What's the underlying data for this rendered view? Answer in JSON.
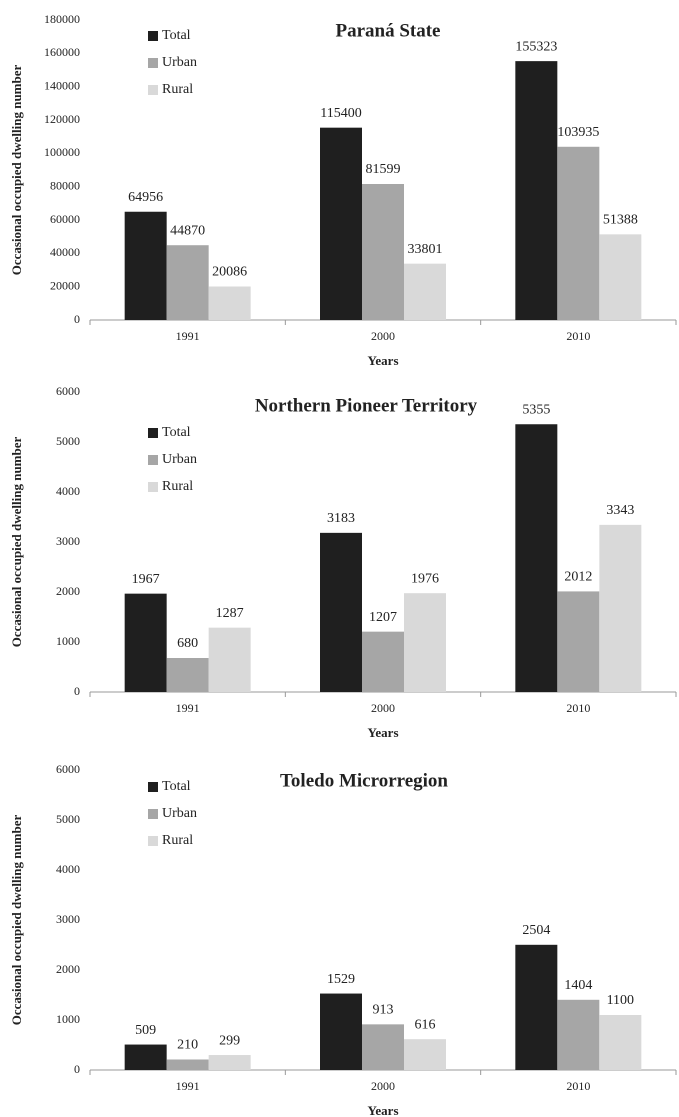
{
  "chart_data": [
    {
      "type": "bar",
      "title": "Paraná State",
      "x_label": "Years",
      "y_label": "Occasional occupied dwelling number",
      "categories": [
        "1991",
        "2000",
        "2010"
      ],
      "series": [
        {
          "name": "Total",
          "color": "#1f1f1f",
          "values": [
            64956,
            115400,
            155323
          ]
        },
        {
          "name": "Urban",
          "color": "#a6a6a6",
          "values": [
            44870,
            81599,
            103935
          ]
        },
        {
          "name": "Rural",
          "color": "#d9d9d9",
          "values": [
            20086,
            33801,
            51388
          ]
        }
      ],
      "ylim": [
        0,
        180000
      ],
      "yticks": [
        0,
        20000,
        40000,
        60000,
        80000,
        100000,
        120000,
        140000,
        160000,
        180000
      ],
      "grid": false
    },
    {
      "type": "bar",
      "title": "Northern Pioneer Territory",
      "x_label": "Years",
      "y_label": "Occasional occupied dwelling number",
      "categories": [
        "1991",
        "2000",
        "2010"
      ],
      "series": [
        {
          "name": "Total",
          "color": "#1f1f1f",
          "values": [
            1967,
            3183,
            5355
          ]
        },
        {
          "name": "Urban",
          "color": "#a6a6a6",
          "values": [
            680,
            1207,
            2012
          ]
        },
        {
          "name": "Rural",
          "color": "#d9d9d9",
          "values": [
            1287,
            1976,
            3343
          ]
        }
      ],
      "ylim": [
        0,
        6000
      ],
      "yticks": [
        0,
        1000,
        2000,
        3000,
        4000,
        5000,
        6000
      ],
      "grid": false
    },
    {
      "type": "bar",
      "title": "Toledo Microrregion",
      "x_label": "Years",
      "y_label": "Occasional occupied dwelling number",
      "categories": [
        "1991",
        "2000",
        "2010"
      ],
      "series": [
        {
          "name": "Total",
          "color": "#1f1f1f",
          "values": [
            509,
            1529,
            2504
          ]
        },
        {
          "name": "Urban",
          "color": "#a6a6a6",
          "values": [
            210,
            913,
            1404
          ]
        },
        {
          "name": "Rural",
          "color": "#d9d9d9",
          "values": [
            299,
            616,
            1100
          ]
        }
      ],
      "ylim": [
        0,
        6000
      ],
      "yticks": [
        0,
        1000,
        2000,
        3000,
        4000,
        5000,
        6000
      ],
      "grid": false
    }
  ]
}
